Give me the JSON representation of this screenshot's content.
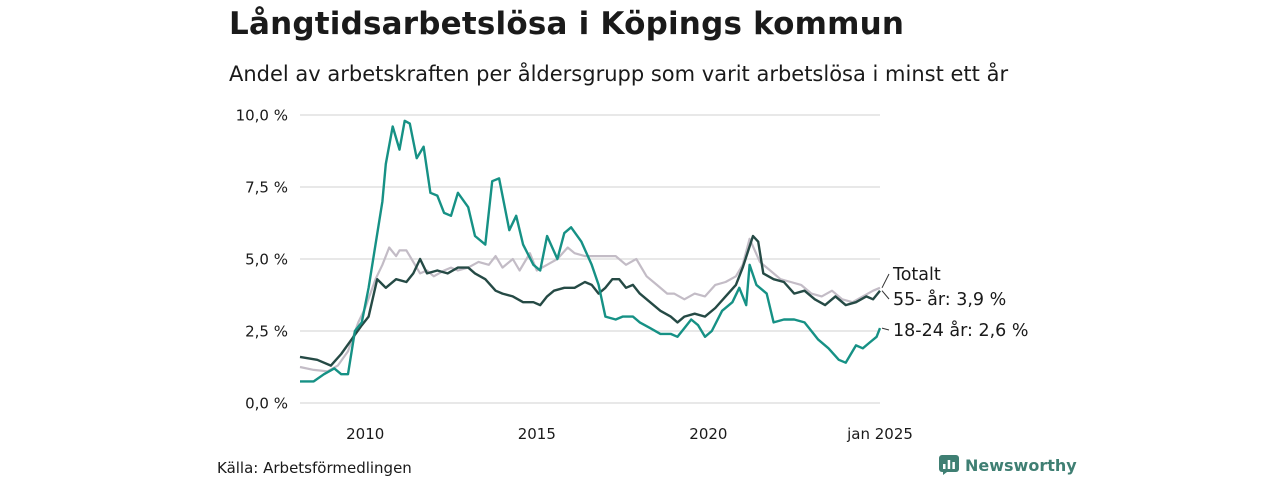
{
  "title": "Långtidsarbetslösa i Köpings kommun",
  "subtitle": "Andel av arbetskraften per åldersgrupp som varit arbetslösa i minst ett år",
  "source": "Källa: Arbetsförmedlingen",
  "brand": "Newsworthy",
  "colors": {
    "totalt": "#c3bcc6",
    "age55": "#254a45",
    "age18_24": "#169185",
    "grid": "#d9d9d9",
    "brand": "#3f7f73"
  },
  "chart_data": {
    "type": "line",
    "x_unit": "year (decimal)",
    "xlim": [
      2008.1,
      2025.0
    ],
    "ylim": [
      0,
      10
    ],
    "y_ticks": [
      {
        "value": 0,
        "label": "0,0 %"
      },
      {
        "value": 2.5,
        "label": "2,5 %"
      },
      {
        "value": 5,
        "label": "5,0 %"
      },
      {
        "value": 7.5,
        "label": "7,5 %"
      },
      {
        "value": 10,
        "label": "10,0 %"
      }
    ],
    "x_ticks": [
      {
        "value": 2010,
        "label": "2010"
      },
      {
        "value": 2015,
        "label": "2015"
      },
      {
        "value": 2020,
        "label": "2020"
      },
      {
        "value": 2025,
        "label": "jan 2025"
      }
    ],
    "grid": "horizontal",
    "series": [
      {
        "name": "Totalt",
        "end_label": "Totalt",
        "color_key": "totalt",
        "points": [
          [
            2008.1,
            1.25
          ],
          [
            2008.5,
            1.15
          ],
          [
            2008.9,
            1.1
          ],
          [
            2009.2,
            1.3
          ],
          [
            2009.5,
            1.8
          ],
          [
            2009.8,
            2.8
          ],
          [
            2010.0,
            3.3
          ],
          [
            2010.3,
            4.3
          ],
          [
            2010.5,
            4.8
          ],
          [
            2010.7,
            5.4
          ],
          [
            2010.9,
            5.1
          ],
          [
            2011.0,
            5.3
          ],
          [
            2011.2,
            5.3
          ],
          [
            2011.4,
            4.9
          ],
          [
            2011.6,
            4.5
          ],
          [
            2011.8,
            4.6
          ],
          [
            2012.0,
            4.4
          ],
          [
            2012.3,
            4.6
          ],
          [
            2012.5,
            4.7
          ],
          [
            2012.7,
            4.6
          ],
          [
            2013.0,
            4.7
          ],
          [
            2013.3,
            4.9
          ],
          [
            2013.6,
            4.8
          ],
          [
            2013.8,
            5.1
          ],
          [
            2014.0,
            4.7
          ],
          [
            2014.3,
            5.0
          ],
          [
            2014.5,
            4.6
          ],
          [
            2014.8,
            5.2
          ],
          [
            2015.0,
            4.6
          ],
          [
            2015.3,
            4.8
          ],
          [
            2015.6,
            5.0
          ],
          [
            2015.9,
            5.4
          ],
          [
            2016.1,
            5.2
          ],
          [
            2016.4,
            5.1
          ],
          [
            2016.7,
            5.1
          ],
          [
            2017.0,
            5.1
          ],
          [
            2017.3,
            5.1
          ],
          [
            2017.6,
            4.8
          ],
          [
            2017.9,
            5.0
          ],
          [
            2018.2,
            4.4
          ],
          [
            2018.5,
            4.1
          ],
          [
            2018.8,
            3.8
          ],
          [
            2019.0,
            3.8
          ],
          [
            2019.3,
            3.6
          ],
          [
            2019.6,
            3.8
          ],
          [
            2019.9,
            3.7
          ],
          [
            2020.2,
            4.1
          ],
          [
            2020.5,
            4.2
          ],
          [
            2020.8,
            4.4
          ],
          [
            2021.0,
            4.8
          ],
          [
            2021.2,
            5.7
          ],
          [
            2021.5,
            4.9
          ],
          [
            2021.8,
            4.6
          ],
          [
            2022.1,
            4.3
          ],
          [
            2022.4,
            4.2
          ],
          [
            2022.7,
            4.1
          ],
          [
            2023.0,
            3.8
          ],
          [
            2023.3,
            3.7
          ],
          [
            2023.6,
            3.9
          ],
          [
            2023.9,
            3.6
          ],
          [
            2024.2,
            3.5
          ],
          [
            2024.5,
            3.7
          ],
          [
            2024.8,
            3.9
          ],
          [
            2025.0,
            4.0
          ]
        ]
      },
      {
        "name": "55- år",
        "end_label": "55- år: 3,9 %",
        "color_key": "age55",
        "points": [
          [
            2008.1,
            1.6
          ],
          [
            2008.6,
            1.5
          ],
          [
            2009.0,
            1.3
          ],
          [
            2009.3,
            1.7
          ],
          [
            2009.6,
            2.2
          ],
          [
            2009.9,
            2.7
          ],
          [
            2010.1,
            3.0
          ],
          [
            2010.35,
            4.3
          ],
          [
            2010.6,
            4.0
          ],
          [
            2010.9,
            4.3
          ],
          [
            2011.2,
            4.2
          ],
          [
            2011.4,
            4.5
          ],
          [
            2011.6,
            5.0
          ],
          [
            2011.8,
            4.5
          ],
          [
            2012.1,
            4.6
          ],
          [
            2012.4,
            4.5
          ],
          [
            2012.7,
            4.7
          ],
          [
            2013.0,
            4.7
          ],
          [
            2013.2,
            4.5
          ],
          [
            2013.5,
            4.3
          ],
          [
            2013.8,
            3.9
          ],
          [
            2014.0,
            3.8
          ],
          [
            2014.3,
            3.7
          ],
          [
            2014.6,
            3.5
          ],
          [
            2014.9,
            3.5
          ],
          [
            2015.1,
            3.4
          ],
          [
            2015.3,
            3.7
          ],
          [
            2015.5,
            3.9
          ],
          [
            2015.8,
            4.0
          ],
          [
            2016.1,
            4.0
          ],
          [
            2016.4,
            4.2
          ],
          [
            2016.6,
            4.1
          ],
          [
            2016.8,
            3.8
          ],
          [
            2017.0,
            4.0
          ],
          [
            2017.2,
            4.3
          ],
          [
            2017.4,
            4.3
          ],
          [
            2017.6,
            4.0
          ],
          [
            2017.8,
            4.1
          ],
          [
            2018.0,
            3.8
          ],
          [
            2018.3,
            3.5
          ],
          [
            2018.6,
            3.2
          ],
          [
            2018.9,
            3.0
          ],
          [
            2019.1,
            2.8
          ],
          [
            2019.3,
            3.0
          ],
          [
            2019.6,
            3.1
          ],
          [
            2019.9,
            3.0
          ],
          [
            2020.2,
            3.3
          ],
          [
            2020.5,
            3.7
          ],
          [
            2020.8,
            4.1
          ],
          [
            2021.0,
            4.7
          ],
          [
            2021.3,
            5.8
          ],
          [
            2021.45,
            5.6
          ],
          [
            2021.6,
            4.5
          ],
          [
            2021.9,
            4.3
          ],
          [
            2022.2,
            4.2
          ],
          [
            2022.5,
            3.8
          ],
          [
            2022.8,
            3.9
          ],
          [
            2023.1,
            3.6
          ],
          [
            2023.4,
            3.4
          ],
          [
            2023.7,
            3.7
          ],
          [
            2024.0,
            3.4
          ],
          [
            2024.3,
            3.5
          ],
          [
            2024.6,
            3.7
          ],
          [
            2024.8,
            3.6
          ],
          [
            2025.0,
            3.9
          ]
        ]
      },
      {
        "name": "18-24 år",
        "end_label": "18-24 år: 2,6 %",
        "color_key": "age18_24",
        "points": [
          [
            2008.1,
            0.75
          ],
          [
            2008.5,
            0.75
          ],
          [
            2008.8,
            1.0
          ],
          [
            2009.1,
            1.2
          ],
          [
            2009.3,
            1.0
          ],
          [
            2009.5,
            1.0
          ],
          [
            2009.7,
            2.5
          ],
          [
            2009.9,
            2.8
          ],
          [
            2010.1,
            4.0
          ],
          [
            2010.3,
            5.5
          ],
          [
            2010.5,
            7.0
          ],
          [
            2010.6,
            8.3
          ],
          [
            2010.8,
            9.6
          ],
          [
            2011.0,
            8.8
          ],
          [
            2011.15,
            9.8
          ],
          [
            2011.3,
            9.7
          ],
          [
            2011.5,
            8.5
          ],
          [
            2011.7,
            8.9
          ],
          [
            2011.9,
            7.3
          ],
          [
            2012.1,
            7.2
          ],
          [
            2012.3,
            6.6
          ],
          [
            2012.5,
            6.5
          ],
          [
            2012.7,
            7.3
          ],
          [
            2013.0,
            6.8
          ],
          [
            2013.2,
            5.8
          ],
          [
            2013.5,
            5.5
          ],
          [
            2013.7,
            7.7
          ],
          [
            2013.9,
            7.8
          ],
          [
            2014.2,
            6.0
          ],
          [
            2014.4,
            6.5
          ],
          [
            2014.6,
            5.5
          ],
          [
            2014.9,
            4.8
          ],
          [
            2015.1,
            4.6
          ],
          [
            2015.3,
            5.8
          ],
          [
            2015.6,
            5.0
          ],
          [
            2015.8,
            5.9
          ],
          [
            2016.0,
            6.1
          ],
          [
            2016.3,
            5.6
          ],
          [
            2016.6,
            4.8
          ],
          [
            2016.8,
            4.1
          ],
          [
            2017.0,
            3.0
          ],
          [
            2017.3,
            2.9
          ],
          [
            2017.5,
            3.0
          ],
          [
            2017.8,
            3.0
          ],
          [
            2018.0,
            2.8
          ],
          [
            2018.3,
            2.6
          ],
          [
            2018.6,
            2.4
          ],
          [
            2018.9,
            2.4
          ],
          [
            2019.1,
            2.3
          ],
          [
            2019.3,
            2.6
          ],
          [
            2019.5,
            2.9
          ],
          [
            2019.7,
            2.7
          ],
          [
            2019.9,
            2.3
          ],
          [
            2020.1,
            2.5
          ],
          [
            2020.4,
            3.2
          ],
          [
            2020.7,
            3.5
          ],
          [
            2020.9,
            4.0
          ],
          [
            2021.1,
            3.4
          ],
          [
            2021.2,
            4.8
          ],
          [
            2021.4,
            4.1
          ],
          [
            2021.7,
            3.8
          ],
          [
            2021.9,
            2.8
          ],
          [
            2022.2,
            2.9
          ],
          [
            2022.5,
            2.9
          ],
          [
            2022.8,
            2.8
          ],
          [
            2023.0,
            2.5
          ],
          [
            2023.2,
            2.2
          ],
          [
            2023.5,
            1.9
          ],
          [
            2023.8,
            1.5
          ],
          [
            2024.0,
            1.4
          ],
          [
            2024.3,
            2.0
          ],
          [
            2024.5,
            1.9
          ],
          [
            2024.7,
            2.1
          ],
          [
            2024.9,
            2.3
          ],
          [
            2025.0,
            2.6
          ]
        ]
      }
    ]
  }
}
